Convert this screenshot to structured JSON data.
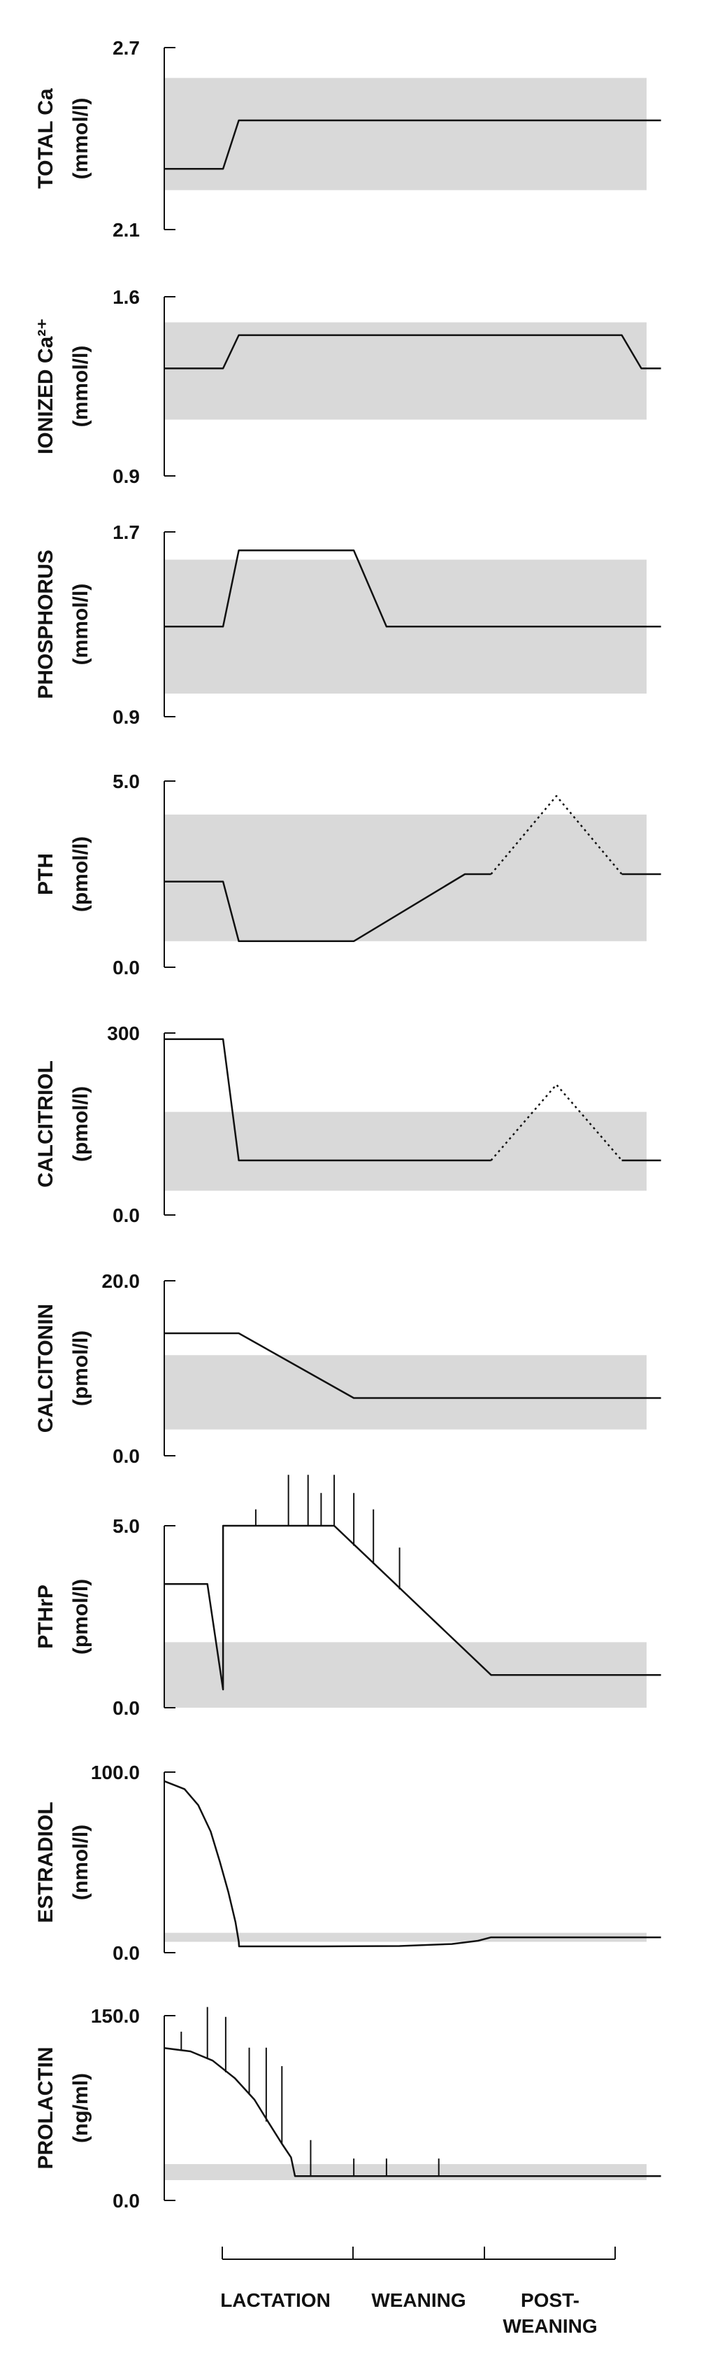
{
  "chart_data": [
    {
      "type": "line",
      "ylabel": [
        "TOTAL Ca",
        "(mmol/l)"
      ],
      "ylim": [
        2.1,
        2.7
      ],
      "yticks": [
        "2.7",
        "2.1"
      ],
      "normal_range": [
        2.23,
        2.6
      ],
      "series": [
        {
          "style": "solid",
          "points": [
            [
              0,
              2.3
            ],
            [
              0.45,
              2.3
            ],
            [
              0.57,
              2.46
            ],
            [
              3.8,
              2.46
            ]
          ]
        }
      ],
      "vlines": []
    },
    {
      "type": "line",
      "ylabel": [
        "IONIZED Ca²⁺",
        "(mmol/l)"
      ],
      "ylim": [
        0.9,
        1.6
      ],
      "yticks": [
        "1.6",
        "0.9"
      ],
      "normal_range": [
        1.12,
        1.5
      ],
      "series": [
        {
          "style": "solid",
          "points": [
            [
              0,
              1.32
            ],
            [
              0.45,
              1.32
            ],
            [
              0.57,
              1.45
            ],
            [
              3.5,
              1.45
            ],
            [
              3.65,
              1.32
            ],
            [
              3.8,
              1.32
            ]
          ]
        }
      ],
      "vlines": []
    },
    {
      "type": "line",
      "ylabel": [
        "PHOSPHORUS",
        "(mmol/l)"
      ],
      "ylim": [
        0.9,
        1.7
      ],
      "yticks": [
        "1.7",
        "0.9"
      ],
      "normal_range": [
        1.0,
        1.58
      ],
      "series": [
        {
          "style": "solid",
          "points": [
            [
              0,
              1.29
            ],
            [
              0.45,
              1.29
            ],
            [
              0.57,
              1.62
            ],
            [
              1.45,
              1.62
            ],
            [
              1.7,
              1.29
            ],
            [
              3.8,
              1.29
            ]
          ]
        }
      ],
      "vlines": []
    },
    {
      "type": "line",
      "ylabel": [
        "PTH",
        "(pmol/l)"
      ],
      "ylim": [
        0.0,
        5.0
      ],
      "yticks": [
        "5.0",
        "0.0"
      ],
      "normal_range": [
        0.7,
        4.1
      ],
      "series": [
        {
          "style": "solid",
          "points": [
            [
              0,
              2.3
            ],
            [
              0.45,
              2.3
            ],
            [
              0.57,
              0.7
            ],
            [
              1.45,
              0.7
            ],
            [
              2.3,
              2.5
            ],
            [
              2.5,
              2.5
            ]
          ]
        },
        {
          "style": "dotted",
          "points": [
            [
              2.5,
              2.5
            ],
            [
              3.0,
              4.6
            ],
            [
              3.5,
              2.5
            ]
          ]
        },
        {
          "style": "solid",
          "points": [
            [
              3.5,
              2.5
            ],
            [
              3.8,
              2.5
            ]
          ]
        }
      ],
      "vlines": []
    },
    {
      "type": "line",
      "ylabel": [
        "CALCITRIOL",
        "(pmol/l)"
      ],
      "ylim": [
        0,
        300
      ],
      "yticks": [
        "300",
        "0.0"
      ],
      "normal_range": [
        40,
        170
      ],
      "series": [
        {
          "style": "solid",
          "points": [
            [
              0,
              290
            ],
            [
              0.45,
              290
            ],
            [
              0.57,
              90
            ],
            [
              2.5,
              90
            ]
          ]
        },
        {
          "style": "dotted",
          "points": [
            [
              2.5,
              90
            ],
            [
              3.0,
              215
            ],
            [
              3.5,
              90
            ]
          ]
        },
        {
          "style": "solid",
          "points": [
            [
              3.5,
              90
            ],
            [
              3.8,
              90
            ]
          ]
        }
      ],
      "vlines": []
    },
    {
      "type": "line",
      "ylabel": [
        "CALCITONIN",
        "(pmol/l)"
      ],
      "ylim": [
        0.0,
        20.0
      ],
      "yticks": [
        "20.0",
        "0.0"
      ],
      "normal_range": [
        3.0,
        11.5
      ],
      "series": [
        {
          "style": "solid",
          "points": [
            [
              0,
              14
            ],
            [
              0.57,
              14
            ],
            [
              1.45,
              6.6
            ],
            [
              3.8,
              6.6
            ]
          ]
        }
      ],
      "vlines": []
    },
    {
      "type": "line",
      "ylabel": [
        "PTHrP",
        "(pmol/l)"
      ],
      "ylim": [
        0.0,
        5.0
      ],
      "yticks": [
        "5.0",
        "0.0"
      ],
      "normal_range": [
        0.0,
        1.8
      ],
      "series": [
        {
          "style": "solid",
          "points": [
            [
              0,
              3.4
            ],
            [
              0.33,
              3.4
            ],
            [
              0.45,
              0.5
            ],
            [
              0.45,
              5.0
            ],
            [
              1.3,
              5.0
            ],
            [
              2.5,
              0.9
            ],
            [
              3.8,
              0.9
            ]
          ]
        }
      ],
      "vlines": [
        [
          0.7,
          5.0,
          5.45
        ],
        [
          0.95,
          5.0,
          6.4
        ],
        [
          1.1,
          5.0,
          6.4
        ],
        [
          1.2,
          5.0,
          5.9
        ],
        [
          1.3,
          5.0,
          6.4
        ],
        [
          1.45,
          4.45,
          5.9
        ],
        [
          1.6,
          3.95,
          5.45
        ],
        [
          1.8,
          3.25,
          4.4
        ]
      ]
    },
    {
      "type": "line",
      "ylabel": [
        "ESTRADIOL",
        "(nmol/l)"
      ],
      "ylim": [
        0.0,
        100.0
      ],
      "yticks": [
        "100.0",
        "0.0"
      ],
      "normal_range": [
        6.0,
        11.0
      ],
      "series": [
        {
          "style": "solid",
          "points": [
            [
              0,
              95.0
            ],
            [
              0.155,
              90.6
            ],
            [
              0.26,
              81.7
            ],
            [
              0.355,
              67.1
            ],
            [
              0.425,
              50.4
            ],
            [
              0.49,
              33.7
            ],
            [
              0.545,
              16.9
            ],
            [
              0.57,
              6.0
            ],
            [
              0.572,
              3.5
            ],
            [
              1.2,
              3.5
            ],
            [
              1.8,
              3.7
            ],
            [
              2.2,
              4.8
            ],
            [
              2.4,
              6.6
            ],
            [
              2.5,
              8.5
            ],
            [
              3.8,
              8.5
            ]
          ]
        }
      ],
      "vlines": []
    },
    {
      "type": "line",
      "ylabel": [
        "PROLACTIN",
        "(ng/ml)"
      ],
      "ylim": [
        0.0,
        150.0
      ],
      "yticks": [
        "150.0",
        "0.0"
      ],
      "normal_range": [
        16.5,
        29.5
      ],
      "series": [
        {
          "style": "solid",
          "points": [
            [
              0,
              123.7
            ],
            [
              0.2,
              121.0
            ],
            [
              0.37,
              113.5
            ],
            [
              0.54,
              99.2
            ],
            [
              0.69,
              81.8
            ],
            [
              0.8,
              62.9
            ],
            [
              0.9,
              46.0
            ],
            [
              0.97,
              34.9
            ],
            [
              1.0,
              19.8
            ],
            [
              3.8,
              19.8
            ]
          ]
        }
      ],
      "vlines": [
        [
          0.13,
          122.0,
          137.0
        ],
        [
          0.33,
          116.0,
          157.0
        ],
        [
          0.47,
          104.0,
          149.0
        ],
        [
          0.65,
          86.0,
          124.0
        ],
        [
          0.78,
          64.0,
          124.0
        ],
        [
          0.9,
          46.0,
          109.0
        ],
        [
          1.12,
          19.8,
          49.0
        ],
        [
          1.45,
          19.8,
          34.0
        ],
        [
          1.7,
          19.8,
          34.0
        ],
        [
          2.1,
          19.8,
          34.0
        ]
      ]
    }
  ],
  "timeline": {
    "labels": [
      "LACTATION",
      "WEANING",
      "POST-",
      "WEANING"
    ]
  },
  "colors": {
    "band": "#d9d9d9",
    "line": "#111111",
    "text": "#111111"
  }
}
